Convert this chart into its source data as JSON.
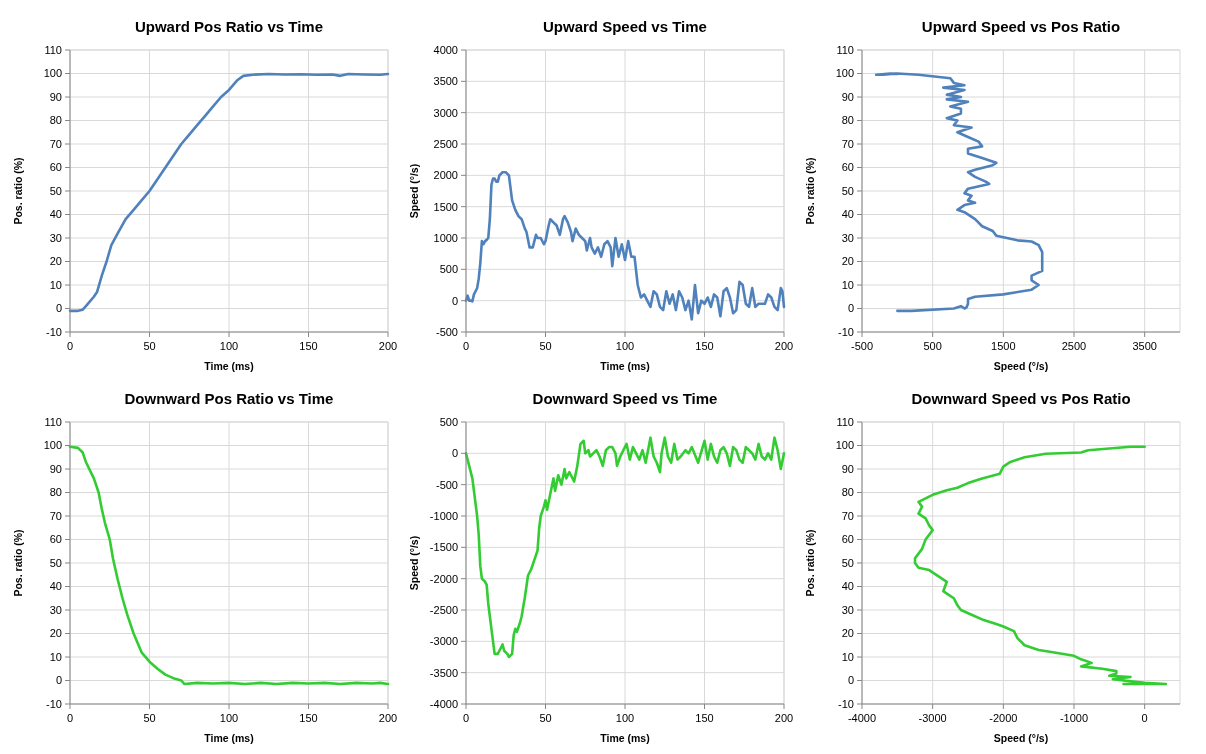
{
  "chart_data": [
    {
      "type": "line",
      "title": "Upward Pos Ratio vs Time",
      "xlabel": "Time (ms)",
      "ylabel": "Pos. ratio (%)",
      "color": "#4f81bd",
      "grid": true,
      "xlim": [
        0,
        200
      ],
      "xticks": [
        0,
        50,
        100,
        150,
        200
      ],
      "ylim": [
        -10,
        110
      ],
      "yticks": [
        -10,
        0,
        10,
        20,
        30,
        40,
        50,
        60,
        70,
        80,
        90,
        100,
        110
      ],
      "x": [
        0,
        5,
        8,
        10,
        15,
        17,
        20,
        23,
        26,
        30,
        35,
        40,
        45,
        50,
        55,
        60,
        65,
        70,
        75,
        80,
        85,
        90,
        95,
        100,
        105,
        109,
        115,
        125,
        135,
        145,
        155,
        165,
        170,
        175,
        185,
        195,
        200
      ],
      "values": [
        -1,
        -1,
        -0.5,
        1,
        5,
        7,
        14,
        20,
        27,
        32,
        38,
        42,
        46,
        50,
        55,
        60,
        65,
        70,
        74,
        78,
        82,
        86,
        90,
        93,
        97,
        99,
        99.5,
        99.8,
        99.6,
        99.7,
        99.5,
        99.6,
        99,
        99.8,
        99.6,
        99.5,
        99.8
      ]
    },
    {
      "type": "line",
      "title": "Upward Speed vs Time",
      "xlabel": "Time (ms)",
      "ylabel": "Speed (°/s)",
      "color": "#4f81bd",
      "grid": true,
      "xlim": [
        0,
        200
      ],
      "xticks": [
        0,
        50,
        100,
        150,
        200
      ],
      "ylim": [
        -500,
        4000
      ],
      "yticks": [
        -500,
        0,
        500,
        1000,
        1500,
        2000,
        2500,
        3000,
        3500,
        4000
      ],
      "x": [
        0,
        1,
        2,
        3,
        4,
        5,
        6,
        7,
        8,
        9,
        10,
        11,
        12,
        13,
        14,
        15,
        16,
        17,
        18,
        19,
        20,
        21,
        23,
        25,
        27,
        28,
        29,
        31,
        33,
        35,
        37,
        38,
        40,
        42,
        44,
        45,
        47,
        49,
        50,
        52,
        53,
        55,
        57,
        59,
        61,
        62,
        64,
        66,
        67,
        69,
        71,
        73,
        75,
        76,
        78,
        79,
        81,
        83,
        85,
        87,
        89,
        91,
        92,
        94,
        96,
        98,
        100,
        102,
        104,
        106,
        108,
        110,
        112,
        114,
        116,
        118,
        120,
        122,
        124,
        126,
        128,
        130,
        132,
        134,
        136,
        138,
        140,
        142,
        144,
        146,
        148,
        150,
        152,
        154,
        156,
        158,
        160,
        162,
        164,
        166,
        168,
        170,
        172,
        174,
        176,
        178,
        180,
        182,
        184,
        186,
        188,
        190,
        192,
        194,
        196,
        198,
        199,
        200
      ],
      "values": [
        0,
        80,
        0,
        0,
        -10,
        100,
        150,
        200,
        350,
        600,
        950,
        900,
        950,
        970,
        1000,
        1300,
        1850,
        1950,
        1950,
        1900,
        1900,
        2000,
        2050,
        2050,
        2000,
        1800,
        1600,
        1450,
        1350,
        1300,
        1150,
        1100,
        850,
        850,
        1050,
        1000,
        1000,
        900,
        950,
        1200,
        1300,
        1250,
        1200,
        1050,
        1300,
        1350,
        1250,
        1100,
        950,
        1150,
        1050,
        1000,
        950,
        800,
        1000,
        850,
        750,
        850,
        700,
        900,
        950,
        850,
        550,
        1000,
        700,
        900,
        650,
        950,
        700,
        700,
        250,
        50,
        100,
        0,
        -100,
        150,
        100,
        -100,
        -150,
        150,
        -50,
        100,
        -150,
        150,
        50,
        -150,
        0,
        -300,
        250,
        -200,
        0,
        -50,
        50,
        -100,
        100,
        50,
        -250,
        150,
        200,
        50,
        -200,
        -150,
        300,
        250,
        -50,
        -100,
        200,
        -100,
        -50,
        -50,
        -50,
        100,
        50,
        -100,
        -150,
        200,
        150,
        -100
      ]
    },
    {
      "type": "line",
      "title": "Upward Speed vs Pos Ratio",
      "xlabel": "Speed (°/s)",
      "ylabel": "Pos. ratio (%)",
      "color": "#4f81bd",
      "grid": true,
      "xlim": [
        -500,
        4000
      ],
      "xticks": [
        -500,
        500,
        1500,
        2500,
        3500
      ],
      "ylim": [
        -10,
        110
      ],
      "yticks": [
        -10,
        0,
        10,
        20,
        30,
        40,
        50,
        60,
        70,
        80,
        90,
        100,
        110
      ],
      "x": [
        0,
        200,
        800,
        900,
        950,
        980,
        1000,
        1000,
        1100,
        1500,
        1900,
        2000,
        1900,
        1900,
        2050,
        2050,
        2050,
        2050,
        2000,
        1900,
        1700,
        1400,
        1350,
        1200,
        1100,
        950,
        850,
        950,
        1100,
        1000,
        1050,
        950,
        1000,
        1300,
        1250,
        1100,
        1000,
        1100,
        1350,
        1400,
        1200,
        1000,
        1000,
        1200,
        1150,
        1000,
        850,
        1050,
        800,
        850,
        700,
        900,
        900,
        750,
        1000,
        700,
        900,
        700,
        950,
        650,
        950,
        800,
        750,
        300,
        0,
        -200,
        -300,
        -100,
        0
      ],
      "values": [
        -1,
        -1,
        0,
        1,
        0,
        0.5,
        2,
        4,
        5,
        6,
        8,
        10,
        12,
        14,
        16,
        19,
        22,
        24,
        27,
        28.5,
        29,
        31,
        33,
        35,
        38,
        41,
        42,
        44,
        45,
        46,
        48,
        49,
        51,
        53,
        54,
        56,
        58,
        59,
        61,
        62,
        64,
        66,
        68,
        69,
        71,
        73,
        75,
        77,
        78,
        80,
        81,
        83,
        85,
        86,
        88,
        89,
        90,
        91,
        93,
        94,
        95,
        96,
        98,
        99.5,
        100,
        99.5,
        99.5,
        100,
        99.8
      ]
    },
    {
      "type": "line",
      "title": "Downward Pos Ratio vs Time",
      "xlabel": "Time (ms)",
      "ylabel": "Pos. ratio (%)",
      "color": "#33cc33",
      "grid": true,
      "xlim": [
        0,
        200
      ],
      "xticks": [
        0,
        50,
        100,
        150,
        200
      ],
      "ylim": [
        -10,
        110
      ],
      "yticks": [
        -10,
        0,
        10,
        20,
        30,
        40,
        50,
        60,
        70,
        80,
        90,
        100,
        110
      ],
      "x": [
        0,
        5,
        8,
        10,
        15,
        18,
        20,
        22,
        25,
        27,
        30,
        33,
        36,
        40,
        45,
        50,
        55,
        60,
        65,
        70,
        72,
        80,
        90,
        100,
        110,
        120,
        130,
        140,
        150,
        160,
        170,
        180,
        190,
        195,
        200
      ],
      "values": [
        99.5,
        99,
        97,
        93,
        86,
        80,
        73,
        67,
        60,
        52,
        43,
        35,
        28,
        20,
        12,
        8,
        5,
        2.5,
        1,
        0,
        -1.5,
        -1,
        -1.3,
        -1,
        -1.5,
        -1,
        -1.5,
        -1,
        -1.3,
        -1,
        -1.5,
        -1,
        -1.3,
        -1,
        -1.5
      ]
    },
    {
      "type": "line",
      "title": "Downward Speed vs Time",
      "xlabel": "Time (ms)",
      "ylabel": "Speed (°/s)",
      "color": "#33cc33",
      "grid": true,
      "xlim": [
        0,
        200
      ],
      "xticks": [
        0,
        50,
        100,
        150,
        200
      ],
      "ylim": [
        -4000,
        500
      ],
      "yticks": [
        -4000,
        -3500,
        -3000,
        -2500,
        -2000,
        -1500,
        -1000,
        -500,
        0,
        500
      ],
      "x": [
        0,
        2,
        4,
        6,
        7,
        8,
        9,
        10,
        12,
        13,
        14,
        16,
        18,
        20,
        21,
        22,
        23,
        24,
        26,
        27,
        29,
        30,
        31,
        32,
        34,
        35,
        37,
        39,
        41,
        43,
        45,
        46,
        47,
        49,
        50,
        51,
        53,
        55,
        56,
        58,
        60,
        62,
        63,
        65,
        66,
        68,
        70,
        72,
        74,
        75,
        77,
        78,
        80,
        82,
        84,
        86,
        88,
        90,
        92,
        94,
        95,
        97,
        99,
        101,
        103,
        105,
        107,
        109,
        111,
        113,
        116,
        118,
        120,
        122,
        123,
        125,
        127,
        129,
        131,
        133,
        135,
        138,
        140,
        142,
        146,
        150,
        152,
        154,
        156,
        158,
        160,
        162,
        164,
        166,
        168,
        170,
        172,
        174,
        176,
        178,
        180,
        182,
        184,
        186,
        188,
        190,
        192,
        194,
        196,
        198,
        200
      ],
      "values": [
        0,
        -200,
        -400,
        -800,
        -1000,
        -1300,
        -1800,
        -2000,
        -2050,
        -2100,
        -2400,
        -2800,
        -3200,
        -3200,
        -3150,
        -3100,
        -3050,
        -3150,
        -3200,
        -3250,
        -3200,
        -2900,
        -2800,
        -2850,
        -2700,
        -2600,
        -2300,
        -1950,
        -1850,
        -1700,
        -1550,
        -1200,
        -1000,
        -850,
        -750,
        -900,
        -650,
        -400,
        -600,
        -350,
        -500,
        -250,
        -400,
        -300,
        -350,
        -450,
        -200,
        150,
        200,
        0,
        50,
        -50,
        0,
        50,
        -50,
        -200,
        50,
        100,
        100,
        0,
        -200,
        -50,
        50,
        150,
        -100,
        100,
        0,
        -100,
        50,
        -150,
        250,
        -50,
        -150,
        -300,
        0,
        250,
        -50,
        -150,
        150,
        -100,
        -50,
        50,
        0,
        100,
        -150,
        200,
        -100,
        150,
        -50,
        -150,
        50,
        100,
        0,
        -200,
        100,
        50,
        -100,
        -150,
        100,
        50,
        0,
        -100,
        150,
        -50,
        -100,
        0,
        -100,
        250,
        50,
        -250,
        0
      ]
    },
    {
      "type": "line",
      "title": "Downward Speed vs Pos Ratio",
      "xlabel": "Speed (°/s)",
      "ylabel": "Pos. ratio (%)",
      "color": "#33cc33",
      "grid": true,
      "xlim": [
        -4000,
        500
      ],
      "xticks": [
        -4000,
        -3000,
        -2000,
        -1000,
        0
      ],
      "ylim": [
        -10,
        110
      ],
      "yticks": [
        -10,
        0,
        10,
        20,
        30,
        40,
        50,
        60,
        70,
        80,
        90,
        100,
        110
      ],
      "x": [
        0,
        -200,
        -800,
        -900,
        -1400,
        -1700,
        -1900,
        -2000,
        -2050,
        -2300,
        -2500,
        -2650,
        -2800,
        -3000,
        -3200,
        -3150,
        -3200,
        -3100,
        -3050,
        -3000,
        -3100,
        -3150,
        -3200,
        -3250,
        -3250,
        -3200,
        -3050,
        -2900,
        -2800,
        -2850,
        -2800,
        -2700,
        -2650,
        -2600,
        -2450,
        -2300,
        -2100,
        -2000,
        -1850,
        -1800,
        -1700,
        -1500,
        -1300,
        -1000,
        -900,
        -750,
        -900,
        -600,
        -400,
        -400,
        -500,
        -200,
        -450,
        0,
        300,
        -300,
        200,
        0
      ],
      "values": [
        99.5,
        99.5,
        98,
        97,
        96.5,
        95,
        93,
        91,
        88,
        86,
        84,
        82,
        81,
        79,
        76,
        74,
        71,
        69,
        66,
        64,
        60,
        56,
        54,
        52,
        50,
        48,
        47,
        44,
        42,
        38,
        37,
        35,
        32,
        30,
        28,
        26,
        24,
        23,
        21,
        18,
        15,
        13,
        12,
        10.5,
        9,
        7.5,
        6,
        5,
        4,
        3,
        2,
        1.5,
        0.5,
        -1,
        -1.5,
        -1.5,
        -1.5,
        -1
      ]
    }
  ]
}
